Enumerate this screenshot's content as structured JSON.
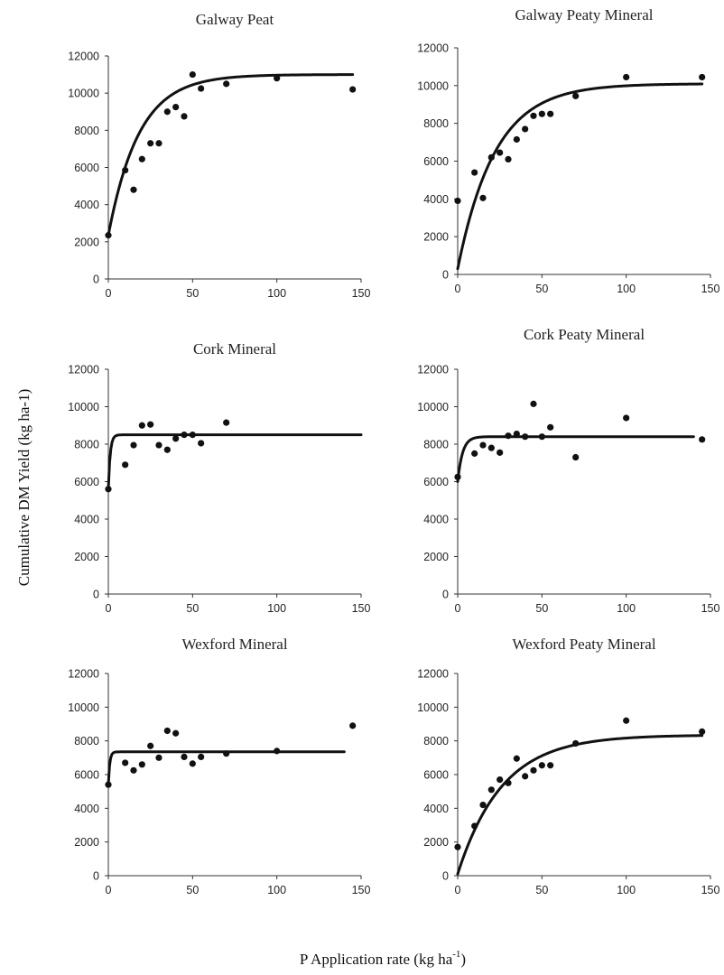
{
  "figure": {
    "ylabel": "Cumulative DM Yield (kg ha-1)",
    "xlabel_main": "P Application rate (kg ha",
    "xlabel_sup": "-1",
    "xlabel_end": ")"
  },
  "chart_data": [
    {
      "type": "scatter",
      "title": "Galway Peat",
      "xlim": [
        0,
        150
      ],
      "ylim": [
        0,
        12000
      ],
      "xticks": [
        0,
        50,
        100,
        150
      ],
      "yticks": [
        0,
        2000,
        4000,
        6000,
        8000,
        10000,
        12000
      ],
      "points": [
        [
          0,
          2350
        ],
        [
          10,
          5850
        ],
        [
          15,
          4800
        ],
        [
          20,
          6450
        ],
        [
          25,
          7300
        ],
        [
          30,
          7300
        ],
        [
          35,
          9000
        ],
        [
          40,
          9250
        ],
        [
          45,
          8750
        ],
        [
          50,
          11000
        ],
        [
          55,
          10250
        ],
        [
          70,
          10500
        ],
        [
          100,
          10800
        ],
        [
          145,
          10200
        ]
      ],
      "fit": {
        "model": "exponential",
        "a": 11000,
        "b": 8650,
        "k": 0.055,
        "xmax": 145
      }
    },
    {
      "type": "scatter",
      "title": "Galway Peaty Mineral",
      "xlim": [
        0,
        150
      ],
      "ylim": [
        0,
        12000
      ],
      "xticks": [
        0,
        50,
        100,
        150
      ],
      "yticks": [
        0,
        2000,
        4000,
        6000,
        8000,
        10000,
        12000
      ],
      "points": [
        [
          0,
          3900
        ],
        [
          10,
          5400
        ],
        [
          15,
          4050
        ],
        [
          20,
          6200
        ],
        [
          25,
          6450
        ],
        [
          30,
          6100
        ],
        [
          35,
          7150
        ],
        [
          40,
          7700
        ],
        [
          45,
          8400
        ],
        [
          50,
          8500
        ],
        [
          55,
          8500
        ],
        [
          70,
          9450
        ],
        [
          100,
          10450
        ],
        [
          145,
          10450
        ]
      ],
      "fit": {
        "model": "exponential",
        "a": 10100,
        "b": 9800,
        "k": 0.045,
        "xmax": 145
      }
    },
    {
      "type": "scatter",
      "title": "Cork Mineral",
      "xlim": [
        0,
        150
      ],
      "ylim": [
        0,
        12000
      ],
      "xticks": [
        0,
        50,
        100,
        150
      ],
      "yticks": [
        0,
        2000,
        4000,
        6000,
        8000,
        10000,
        12000
      ],
      "points": [
        [
          0,
          5600
        ],
        [
          10,
          6900
        ],
        [
          15,
          7950
        ],
        [
          20,
          9000
        ],
        [
          25,
          9050
        ],
        [
          30,
          7950
        ],
        [
          35,
          7700
        ],
        [
          40,
          8300
        ],
        [
          45,
          8500
        ],
        [
          50,
          8500
        ],
        [
          55,
          8050
        ],
        [
          70,
          9150
        ]
      ],
      "fit": {
        "model": "exponential",
        "a": 8500,
        "b": 2900,
        "k": 0.9,
        "xmax": 150
      }
    },
    {
      "type": "scatter",
      "title": "Cork Peaty Mineral",
      "xlim": [
        0,
        150
      ],
      "ylim": [
        0,
        12000
      ],
      "xticks": [
        0,
        50,
        100,
        150
      ],
      "yticks": [
        0,
        2000,
        4000,
        6000,
        8000,
        10000,
        12000
      ],
      "points": [
        [
          0,
          6250
        ],
        [
          10,
          7500
        ],
        [
          15,
          7950
        ],
        [
          20,
          7800
        ],
        [
          25,
          7550
        ],
        [
          30,
          8450
        ],
        [
          35,
          8550
        ],
        [
          40,
          8400
        ],
        [
          45,
          10150
        ],
        [
          50,
          8400
        ],
        [
          55,
          8900
        ],
        [
          70,
          7300
        ],
        [
          100,
          9400
        ],
        [
          145,
          8250
        ]
      ],
      "fit": {
        "model": "exponential",
        "a": 8400,
        "b": 2400,
        "k": 0.35,
        "xmax": 140
      }
    },
    {
      "type": "scatter",
      "title": "Wexford Mineral",
      "xlim": [
        0,
        150
      ],
      "ylim": [
        0,
        12000
      ],
      "xticks": [
        0,
        50,
        100,
        150
      ],
      "yticks": [
        0,
        2000,
        4000,
        6000,
        8000,
        10000,
        12000
      ],
      "points": [
        [
          0,
          5400
        ],
        [
          10,
          6700
        ],
        [
          15,
          6250
        ],
        [
          20,
          6600
        ],
        [
          25,
          7700
        ],
        [
          30,
          7000
        ],
        [
          35,
          8600
        ],
        [
          40,
          8450
        ],
        [
          45,
          7050
        ],
        [
          50,
          6650
        ],
        [
          55,
          7050
        ],
        [
          70,
          7250
        ],
        [
          100,
          7400
        ],
        [
          145,
          8900
        ]
      ],
      "fit": {
        "model": "exponential",
        "a": 7350,
        "b": 1950,
        "k": 1.2,
        "xmax": 140
      }
    },
    {
      "type": "scatter",
      "title": "Wexford Peaty Mineral",
      "xlim": [
        0,
        150
      ],
      "ylim": [
        0,
        12000
      ],
      "xticks": [
        0,
        50,
        100,
        150
      ],
      "yticks": [
        0,
        2000,
        4000,
        6000,
        8000,
        10000,
        12000
      ],
      "points": [
        [
          0,
          1700
        ],
        [
          10,
          2950
        ],
        [
          15,
          4200
        ],
        [
          20,
          5100
        ],
        [
          25,
          5700
        ],
        [
          30,
          5500
        ],
        [
          35,
          6950
        ],
        [
          40,
          5900
        ],
        [
          45,
          6250
        ],
        [
          50,
          6550
        ],
        [
          55,
          6550
        ],
        [
          70,
          7850
        ],
        [
          100,
          9200
        ],
        [
          145,
          8550
        ]
      ],
      "fit": {
        "model": "exponential",
        "a": 8350,
        "b": 8250,
        "k": 0.038,
        "xmax": 145
      }
    }
  ]
}
